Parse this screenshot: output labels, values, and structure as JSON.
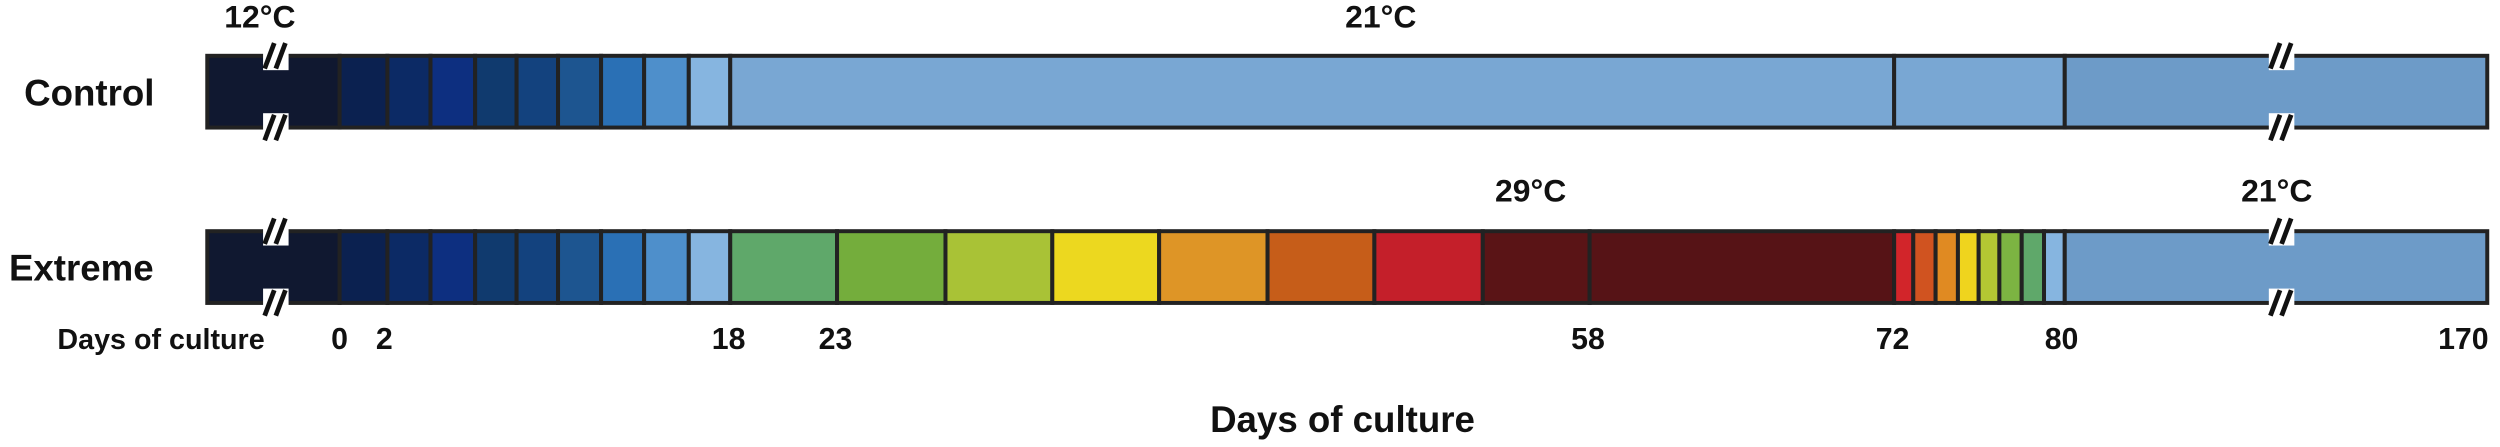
{
  "labels": {
    "control": "Control",
    "extreme": "Extreme"
  },
  "temperatures": {
    "control_start": "12°C",
    "control_main": "21°C",
    "extreme_high": "29°C",
    "extreme_end": "21°C"
  },
  "axis": {
    "inline_label": "Days of culture",
    "ticks": [
      0,
      2,
      18,
      23,
      58,
      72,
      80,
      170
    ],
    "title": "Days of culture"
  }
}
